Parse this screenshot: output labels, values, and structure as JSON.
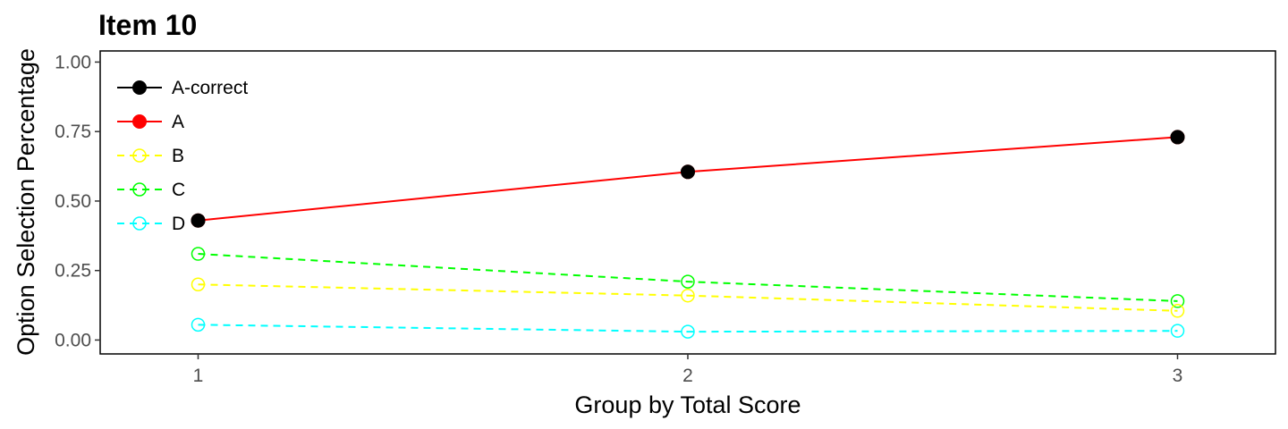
{
  "chart_data": {
    "type": "line",
    "title": "Item 10",
    "xlabel": "Group by Total Score",
    "ylabel": "Option Selection Percentage",
    "x": [
      1,
      2,
      3
    ],
    "xlim": [
      0.8,
      3.2
    ],
    "ylim": [
      -0.05,
      1.04
    ],
    "yticks": [
      0.0,
      0.25,
      0.5,
      0.75,
      1.0
    ],
    "ytick_labels": [
      "0.00",
      "0.25",
      "0.50",
      "0.75",
      "1.00"
    ],
    "xticks": [
      1,
      2,
      3
    ],
    "xtick_labels": [
      "1",
      "2",
      "3"
    ],
    "grid": false,
    "legend_position": "top-left",
    "series": [
      {
        "name": "A-correct",
        "values": [
          0.43,
          0.605,
          0.73
        ],
        "color": "#000000",
        "marker": "filled-circle",
        "line": "solid",
        "draw_line": false
      },
      {
        "name": "A",
        "values": [
          0.43,
          0.605,
          0.73
        ],
        "color": "#ff0000",
        "marker": "filled-circle",
        "line": "solid",
        "draw_line": true
      },
      {
        "name": "B",
        "values": [
          0.2,
          0.16,
          0.105
        ],
        "color": "#ffff00",
        "marker": "open-circle",
        "line": "dashed",
        "draw_line": true
      },
      {
        "name": "C",
        "values": [
          0.31,
          0.21,
          0.14
        ],
        "color": "#00ff00",
        "marker": "open-circle",
        "line": "dashed",
        "draw_line": true
      },
      {
        "name": "D",
        "values": [
          0.055,
          0.03,
          0.033
        ],
        "color": "#00ffff",
        "marker": "open-circle",
        "line": "dashed",
        "draw_line": true
      }
    ]
  }
}
